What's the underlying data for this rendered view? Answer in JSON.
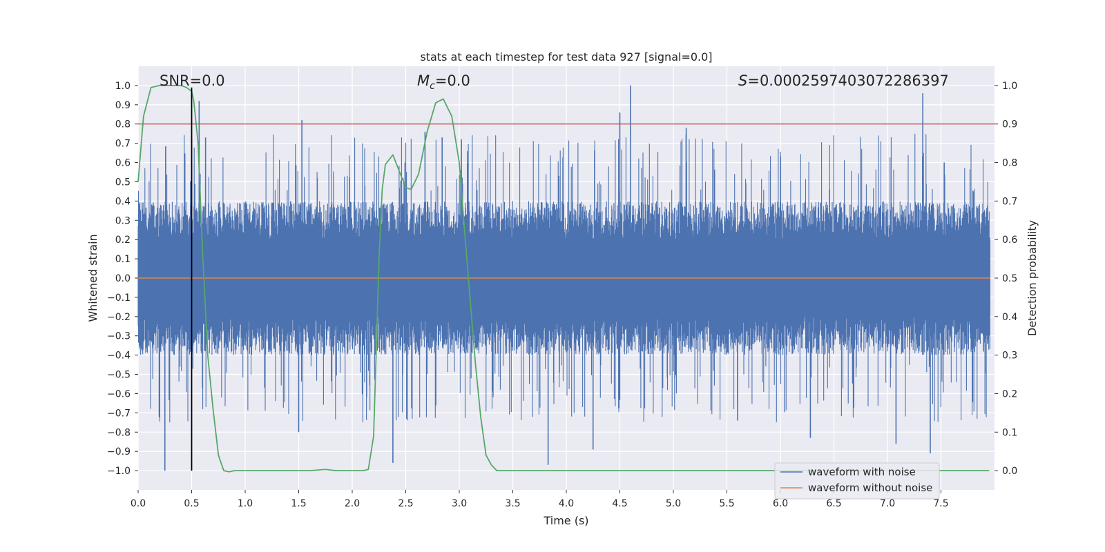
{
  "chart_data": {
    "type": "line",
    "title": "stats at each timestep for test data 927 [signal=0.0]",
    "xlabel": "Time (s)",
    "ylabel": "Whitened strain",
    "y2label": "Detection probability",
    "xlim": [
      0.0,
      8.0
    ],
    "ylim": [
      -1.1,
      1.1
    ],
    "y2lim": [
      -0.05,
      1.05
    ],
    "xticks": [
      "0.0",
      "0.5",
      "1.0",
      "1.5",
      "2.0",
      "2.5",
      "3.0",
      "3.5",
      "4.0",
      "4.5",
      "5.0",
      "5.5",
      "6.0",
      "6.5",
      "7.0",
      "7.5"
    ],
    "xtick_values": [
      0.0,
      0.5,
      1.0,
      1.5,
      2.0,
      2.5,
      3.0,
      3.5,
      4.0,
      4.5,
      5.0,
      5.5,
      6.0,
      6.5,
      7.0,
      7.5
    ],
    "yticks": [
      "1.0",
      "0.9",
      "0.8",
      "0.7",
      "0.6",
      "0.5",
      "0.4",
      "0.3",
      "0.2",
      "0.1",
      "0.0",
      "−0.1",
      "−0.2",
      "−0.3",
      "−0.4",
      "−0.5",
      "−0.6",
      "−0.7",
      "−0.8",
      "−0.9",
      "−1.0"
    ],
    "ytick_values": [
      1.0,
      0.9,
      0.8,
      0.7,
      0.6,
      0.5,
      0.4,
      0.3,
      0.2,
      0.1,
      0.0,
      -0.1,
      -0.2,
      -0.3,
      -0.4,
      -0.5,
      -0.6,
      -0.7,
      -0.8,
      -0.9,
      -1.0
    ],
    "y2ticks": [
      "1.0",
      "0.9",
      "0.8",
      "0.7",
      "0.6",
      "0.5",
      "0.4",
      "0.3",
      "0.2",
      "0.1",
      "0.0"
    ],
    "y2tick_values": [
      1.0,
      0.9,
      0.8,
      0.7,
      0.6,
      0.5,
      0.4,
      0.3,
      0.2,
      0.1,
      0.0
    ],
    "annotations": {
      "snr": "SNR=0.0",
      "mc_symbol": "M",
      "mc_sub": "c",
      "mc_value": "=0.0",
      "s_symbol": "S",
      "s_value": "=0.0002597403072286397"
    },
    "legend": {
      "placement": "lower-right",
      "entries": [
        "waveform with noise",
        "waveform without noise"
      ]
    },
    "colors": {
      "noise": "#4c72b0",
      "clean": "#dd8452",
      "probability": "#55a868",
      "threshold": "#c44e52",
      "marker": "#000000",
      "plot_bg": "#eaeaf2",
      "grid": "#ffffff"
    },
    "series": [
      {
        "name": "waveform with noise",
        "axis": "left",
        "style": "dense noise, |amplitude| mostly within 0.4, spikes to about 1.0",
        "spikes": [
          [
            0.04,
            -0.38
          ],
          [
            0.25,
            -1.0
          ],
          [
            0.5,
            0.73
          ],
          [
            0.57,
            0.92
          ],
          [
            0.63,
            0.73
          ],
          [
            1.53,
            0.82
          ],
          [
            1.5,
            -0.8
          ],
          [
            2.38,
            -0.96
          ],
          [
            2.68,
            0.76
          ],
          [
            2.84,
            0.73
          ],
          [
            3.02,
            0.72
          ],
          [
            3.83,
            -0.97
          ],
          [
            4.25,
            -0.89
          ],
          [
            4.5,
            0.86
          ],
          [
            4.6,
            1.0
          ],
          [
            5.12,
            0.78
          ],
          [
            5.6,
            -0.74
          ],
          [
            6.28,
            -0.83
          ],
          [
            7.08,
            -0.86
          ],
          [
            7.33,
            0.96
          ],
          [
            7.4,
            -0.91
          ],
          [
            7.53,
            0.6
          ]
        ]
      },
      {
        "name": "waveform without noise",
        "axis": "left",
        "x": [
          0.0,
          8.0
        ],
        "y": [
          0.0,
          0.0
        ]
      },
      {
        "name": "detection probability",
        "axis": "right",
        "x": [
          0.0,
          0.05,
          0.12,
          0.2,
          0.3,
          0.4,
          0.45,
          0.5,
          0.52,
          0.56,
          0.6,
          0.65,
          0.7,
          0.75,
          0.8,
          0.85,
          0.9,
          1.0,
          1.2,
          1.5,
          1.6,
          1.75,
          1.85,
          2.0,
          2.1,
          2.15,
          2.2,
          2.25,
          2.28,
          2.31,
          2.38,
          2.45,
          2.5,
          2.55,
          2.62,
          2.7,
          2.78,
          2.85,
          2.93,
          3.0,
          3.05,
          3.1,
          3.15,
          3.2,
          3.25,
          3.3,
          3.35,
          3.4,
          4.0,
          5.0,
          6.0,
          7.0,
          7.95
        ],
        "y": [
          0.75,
          0.92,
          0.995,
          1.0,
          1.0,
          1.0,
          0.995,
          0.985,
          0.96,
          0.85,
          0.58,
          0.3,
          0.16,
          0.04,
          0.0,
          -0.003,
          0.0,
          0.0,
          0.0,
          0.0,
          0.0,
          0.003,
          0.0,
          0.0,
          0.0,
          0.003,
          0.09,
          0.55,
          0.73,
          0.795,
          0.82,
          0.77,
          0.735,
          0.73,
          0.77,
          0.88,
          0.955,
          0.965,
          0.92,
          0.8,
          0.62,
          0.45,
          0.28,
          0.14,
          0.04,
          0.015,
          0.0,
          0.0,
          0.0,
          0.0,
          0.0,
          0.0,
          0.0
        ]
      },
      {
        "name": "threshold",
        "axis": "left",
        "y": 0.8
      },
      {
        "name": "marker",
        "axis": "left",
        "x": 0.5,
        "y_range": [
          -1.0,
          0.99
        ]
      }
    ]
  }
}
